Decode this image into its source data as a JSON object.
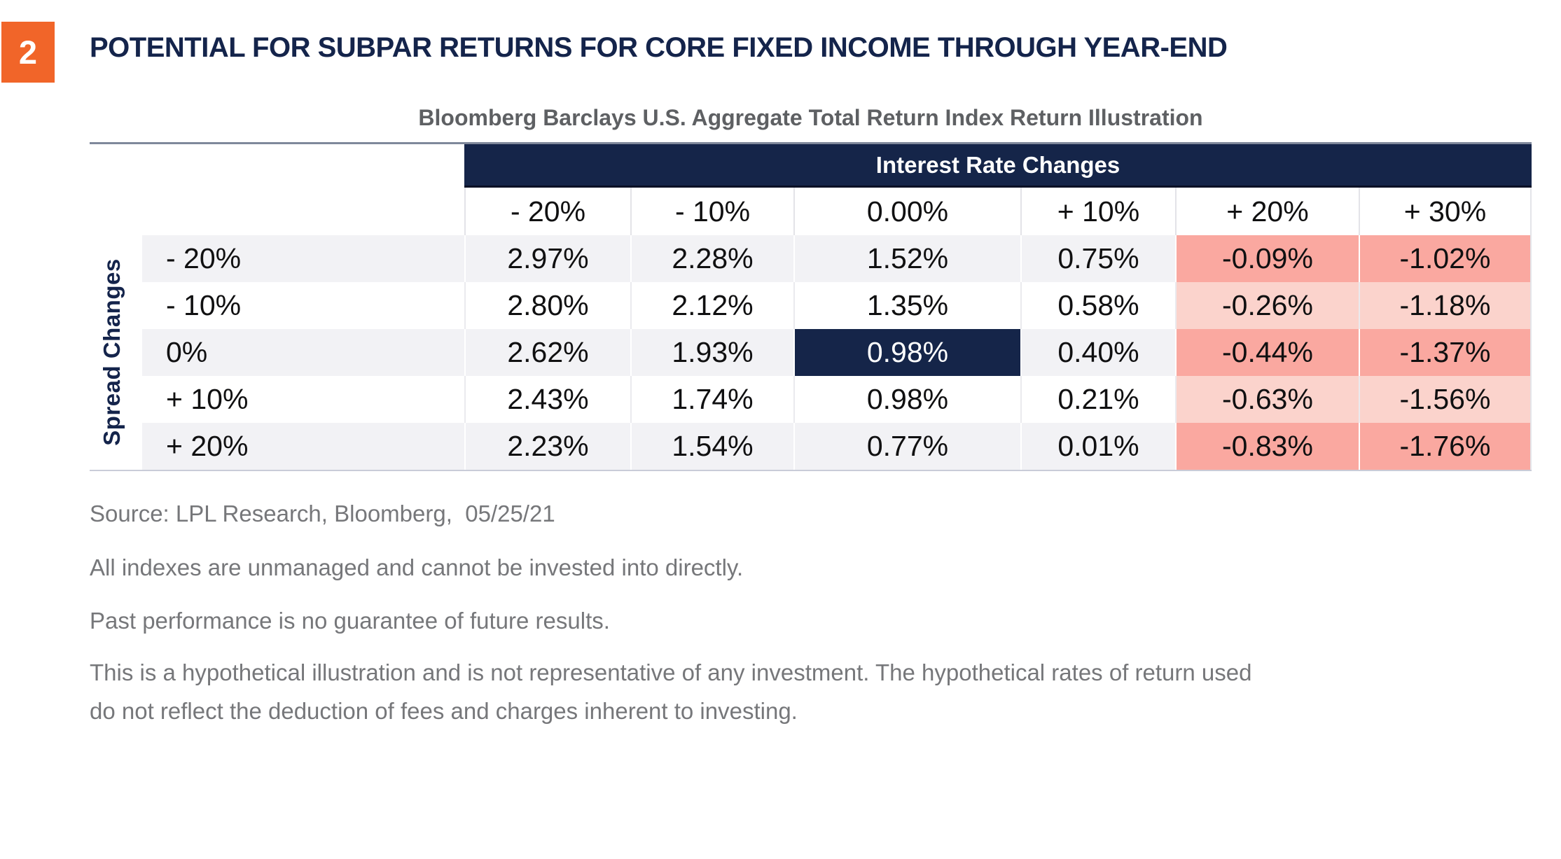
{
  "badge": "2",
  "title": "POTENTIAL FOR SUBPAR RETURNS FOR CORE FIXED INCOME THROUGH YEAR-END",
  "subtitle": "Bloomberg Barclays U.S. Aggregate Total Return Index Return Illustration",
  "colors": {
    "navy": "#152549",
    "orange_badge": "#F16529",
    "negative_strong": "#FAA8A0",
    "negative_light": "#FBD3CC",
    "row_stripe": "#F2F2F5",
    "footnote_gray": "#76777A"
  },
  "table": {
    "column_group_label": "Interest Rate Changes",
    "row_group_label": "Spread Changes",
    "columns": [
      "- 20%",
      "- 10%",
      "0.00%",
      "+ 10%",
      "+ 20%",
      "+ 30%"
    ],
    "rows": [
      {
        "label": "- 20%",
        "cells": [
          "2.97%",
          "2.28%",
          "1.52%",
          "0.75%",
          "-0.09%",
          "-1.02%"
        ]
      },
      {
        "label": "- 10%",
        "cells": [
          "2.80%",
          "2.12%",
          "1.35%",
          "0.58%",
          "-0.26%",
          "-1.18%"
        ]
      },
      {
        "label": "0%",
        "cells": [
          "2.62%",
          "1.93%",
          "0.98%",
          "0.40%",
          "-0.44%",
          "-1.37%"
        ]
      },
      {
        "label": "+ 10%",
        "cells": [
          "2.43%",
          "1.74%",
          "0.98%",
          "0.21%",
          "-0.63%",
          "-1.56%"
        ]
      },
      {
        "label": "+ 20%",
        "cells": [
          "2.23%",
          "1.54%",
          "0.77%",
          "0.01%",
          "-0.83%",
          "-1.76%"
        ]
      }
    ],
    "highlighted_cell": {
      "row": "0%",
      "column": "0.00%",
      "value": "0.98%"
    }
  },
  "footnotes": [
    "Source: LPL Research, Bloomberg,  05/25/21",
    "All indexes are unmanaged and cannot be invested into directly.",
    "Past performance is no guarantee of future results.",
    "This is a hypothetical illustration and is not representative of any investment. The hypothetical rates of return used",
    "do not reflect the deduction of fees and charges inherent to investing."
  ],
  "chart_data": {
    "type": "table",
    "title": "POTENTIAL FOR SUBPAR RETURNS FOR CORE FIXED INCOME THROUGH YEAR-END",
    "subtitle": "Bloomberg Barclays U.S. Aggregate Total Return Index Return Illustration",
    "column_group": "Interest Rate Changes",
    "row_group": "Spread Changes",
    "columns_interest_rate_changes": [
      "-20%",
      "-10%",
      "0.00%",
      "+10%",
      "+20%",
      "+30%"
    ],
    "rows_spread_changes": [
      "-20%",
      "-10%",
      "0%",
      "+10%",
      "+20%"
    ],
    "values_pct": [
      [
        2.97,
        2.28,
        1.52,
        0.75,
        -0.09,
        -1.02
      ],
      [
        2.8,
        2.12,
        1.35,
        0.58,
        -0.26,
        -1.18
      ],
      [
        2.62,
        1.93,
        0.98,
        0.4,
        -0.44,
        -1.37
      ],
      [
        2.43,
        1.74,
        0.98,
        0.21,
        -0.63,
        -1.56
      ],
      [
        2.23,
        1.54,
        0.77,
        0.01,
        -0.83,
        -1.76
      ]
    ],
    "highlighted_cell": {
      "row": "0%",
      "column": "0.00%",
      "value_pct": 0.98
    },
    "shading": "negative values shaded salmon (strong on striped rows, light on white rows)"
  }
}
